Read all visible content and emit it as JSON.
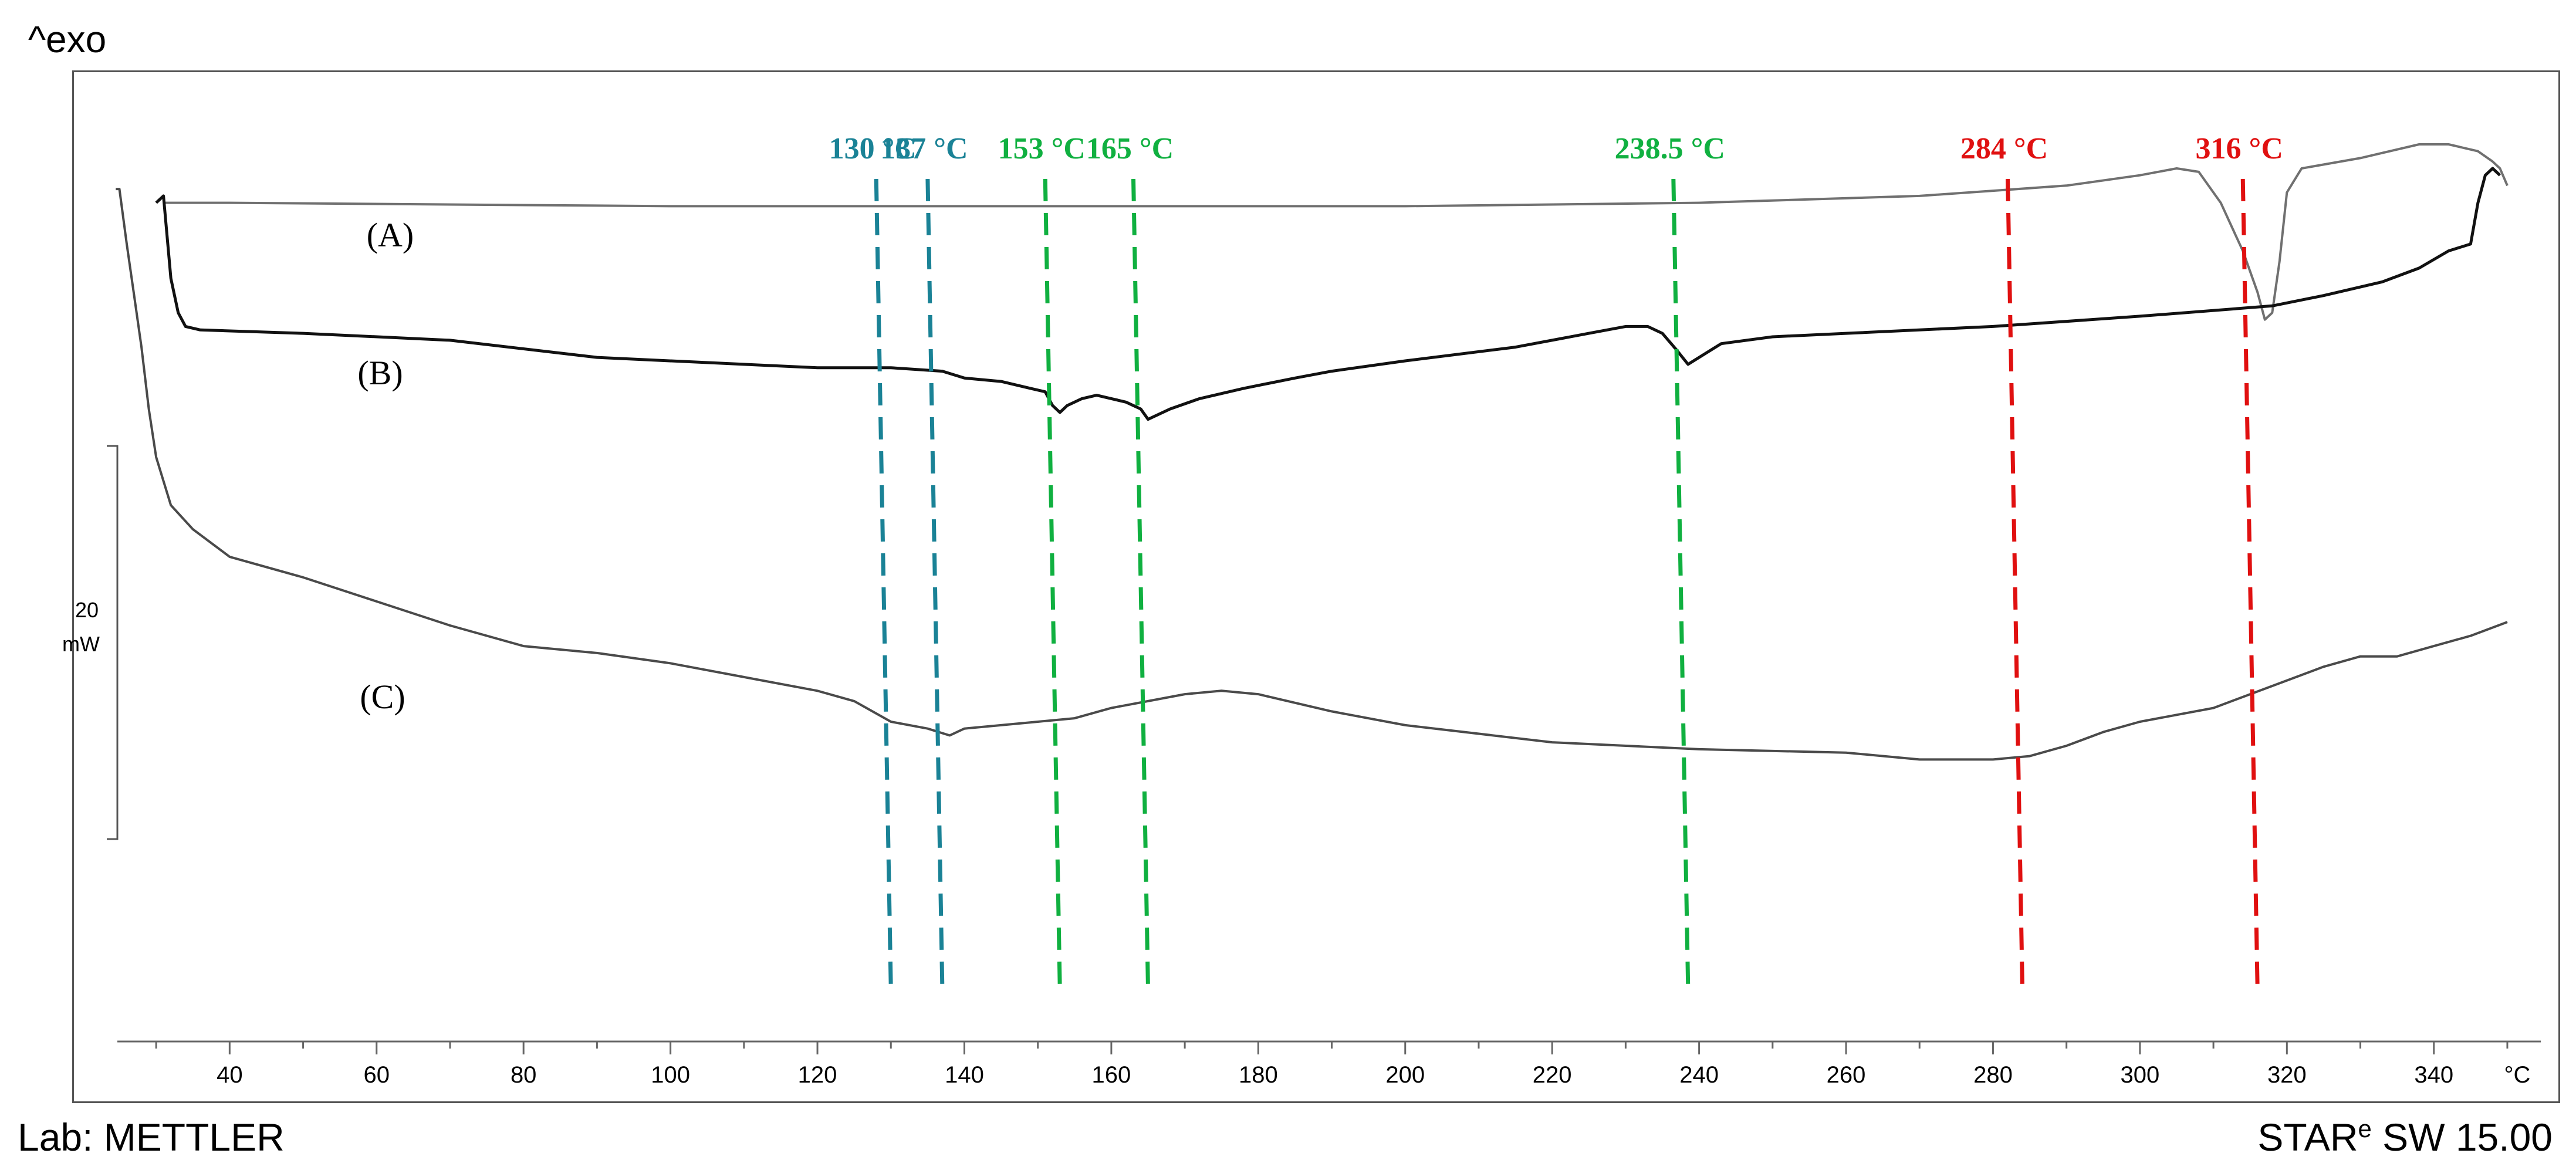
{
  "header": {
    "exo_label": "^exo"
  },
  "footer": {
    "lab": "Lab: METTLER",
    "software": "STAR",
    "software_sup": "e",
    "software_version": " SW 15.00"
  },
  "chart_data": {
    "type": "line",
    "title": "",
    "xlabel": "°C",
    "ylabel": "",
    "xlim": [
      24,
      352
    ],
    "ylim": [
      -1.8,
      1
    ],
    "x_ticks": [
      40,
      60,
      80,
      100,
      120,
      140,
      160,
      180,
      200,
      220,
      240,
      260,
      280,
      300,
      320,
      340
    ],
    "x_unit": "°C",
    "scale_bar": {
      "value": "20",
      "unit": "mW"
    },
    "series": [
      {
        "name": "(A)",
        "color": "#707070",
        "points": [
          [
            31,
            0.62
          ],
          [
            40,
            0.62
          ],
          [
            100,
            0.61
          ],
          [
            200,
            0.61
          ],
          [
            240,
            0.62
          ],
          [
            270,
            0.64
          ],
          [
            290,
            0.67
          ],
          [
            300,
            0.7
          ],
          [
            305,
            0.72
          ],
          [
            308,
            0.71
          ],
          [
            311,
            0.62
          ],
          [
            314,
            0.48
          ],
          [
            316,
            0.36
          ],
          [
            317,
            0.28
          ],
          [
            318,
            0.3
          ],
          [
            319,
            0.45
          ],
          [
            320,
            0.65
          ],
          [
            322,
            0.72
          ],
          [
            330,
            0.75
          ],
          [
            338,
            0.79
          ],
          [
            342,
            0.79
          ],
          [
            346,
            0.77
          ],
          [
            348,
            0.74
          ],
          [
            349,
            0.72
          ],
          [
            350,
            0.67
          ]
        ]
      },
      {
        "name": "(B)",
        "color": "#111111",
        "points": [
          [
            30,
            0.62
          ],
          [
            31,
            0.64
          ],
          [
            32,
            0.4
          ],
          [
            33,
            0.3
          ],
          [
            34,
            0.26
          ],
          [
            36,
            0.25
          ],
          [
            50,
            0.24
          ],
          [
            70,
            0.22
          ],
          [
            90,
            0.17
          ],
          [
            110,
            0.15
          ],
          [
            120,
            0.14
          ],
          [
            130,
            0.14
          ],
          [
            137,
            0.13
          ],
          [
            140,
            0.11
          ],
          [
            145,
            0.1
          ],
          [
            149,
            0.08
          ],
          [
            151,
            0.07
          ],
          [
            152,
            0.03
          ],
          [
            153,
            0.01
          ],
          [
            154,
            0.03
          ],
          [
            156,
            0.05
          ],
          [
            158,
            0.06
          ],
          [
            160,
            0.05
          ],
          [
            162,
            0.04
          ],
          [
            164,
            0.02
          ],
          [
            165,
            -0.01
          ],
          [
            166,
            0.0
          ],
          [
            168,
            0.02
          ],
          [
            172,
            0.05
          ],
          [
            178,
            0.08
          ],
          [
            185,
            0.11
          ],
          [
            190,
            0.13
          ],
          [
            200,
            0.16
          ],
          [
            215,
            0.2
          ],
          [
            225,
            0.24
          ],
          [
            230,
            0.26
          ],
          [
            233,
            0.26
          ],
          [
            235,
            0.24
          ],
          [
            237,
            0.19
          ],
          [
            238.5,
            0.15
          ],
          [
            240,
            0.17
          ],
          [
            243,
            0.21
          ],
          [
            250,
            0.23
          ],
          [
            260,
            0.24
          ],
          [
            280,
            0.26
          ],
          [
            300,
            0.29
          ],
          [
            318,
            0.32
          ],
          [
            325,
            0.35
          ],
          [
            333,
            0.39
          ],
          [
            338,
            0.43
          ],
          [
            342,
            0.48
          ],
          [
            345,
            0.5
          ],
          [
            346,
            0.62
          ],
          [
            347,
            0.7
          ],
          [
            348,
            0.72
          ],
          [
            349,
            0.7
          ]
        ]
      },
      {
        "name": "(C)",
        "color": "#4a4a4a",
        "points": [
          [
            24.5,
            0.66
          ],
          [
            25,
            0.66
          ],
          [
            26,
            0.5
          ],
          [
            27,
            0.35
          ],
          [
            28,
            0.2
          ],
          [
            29,
            0.02
          ],
          [
            30,
            -0.12
          ],
          [
            32,
            -0.26
          ],
          [
            35,
            -0.33
          ],
          [
            40,
            -0.41
          ],
          [
            50,
            -0.47
          ],
          [
            60,
            -0.54
          ],
          [
            70,
            -0.61
          ],
          [
            80,
            -0.67
          ],
          [
            90,
            -0.69
          ],
          [
            100,
            -0.72
          ],
          [
            110,
            -0.76
          ],
          [
            120,
            -0.8
          ],
          [
            125,
            -0.83
          ],
          [
            130,
            -0.89
          ],
          [
            135,
            -0.91
          ],
          [
            138,
            -0.93
          ],
          [
            140,
            -0.91
          ],
          [
            145,
            -0.9
          ],
          [
            150,
            -0.89
          ],
          [
            155,
            -0.88
          ],
          [
            160,
            -0.85
          ],
          [
            165,
            -0.83
          ],
          [
            170,
            -0.81
          ],
          [
            175,
            -0.8
          ],
          [
            180,
            -0.81
          ],
          [
            190,
            -0.86
          ],
          [
            200,
            -0.9
          ],
          [
            220,
            -0.95
          ],
          [
            240,
            -0.97
          ],
          [
            260,
            -0.98
          ],
          [
            270,
            -1.0
          ],
          [
            280,
            -1.0
          ],
          [
            285,
            -0.99
          ],
          [
            290,
            -0.96
          ],
          [
            295,
            -0.92
          ],
          [
            300,
            -0.89
          ],
          [
            310,
            -0.85
          ],
          [
            320,
            -0.77
          ],
          [
            325,
            -0.73
          ],
          [
            330,
            -0.7
          ],
          [
            335,
            -0.7
          ],
          [
            340,
            -0.67
          ],
          [
            345,
            -0.64
          ],
          [
            350,
            -0.6
          ]
        ]
      }
    ],
    "annotations": [
      {
        "label": "130 °C",
        "x": 130,
        "color": "#1a8296"
      },
      {
        "label": "137 °C",
        "x": 137,
        "color": "#1a8296"
      },
      {
        "label": "153 °C",
        "x": 153,
        "color": "#10b040"
      },
      {
        "label": "165 °C",
        "x": 165,
        "color": "#10b040"
      },
      {
        "label": "238.5 °C",
        "x": 238.5,
        "color": "#10b040"
      },
      {
        "label": "284 °C",
        "x": 284,
        "color": "#e01010"
      },
      {
        "label": "316 °C",
        "x": 316,
        "color": "#e01010"
      }
    ],
    "grid": false,
    "legend": "none"
  }
}
